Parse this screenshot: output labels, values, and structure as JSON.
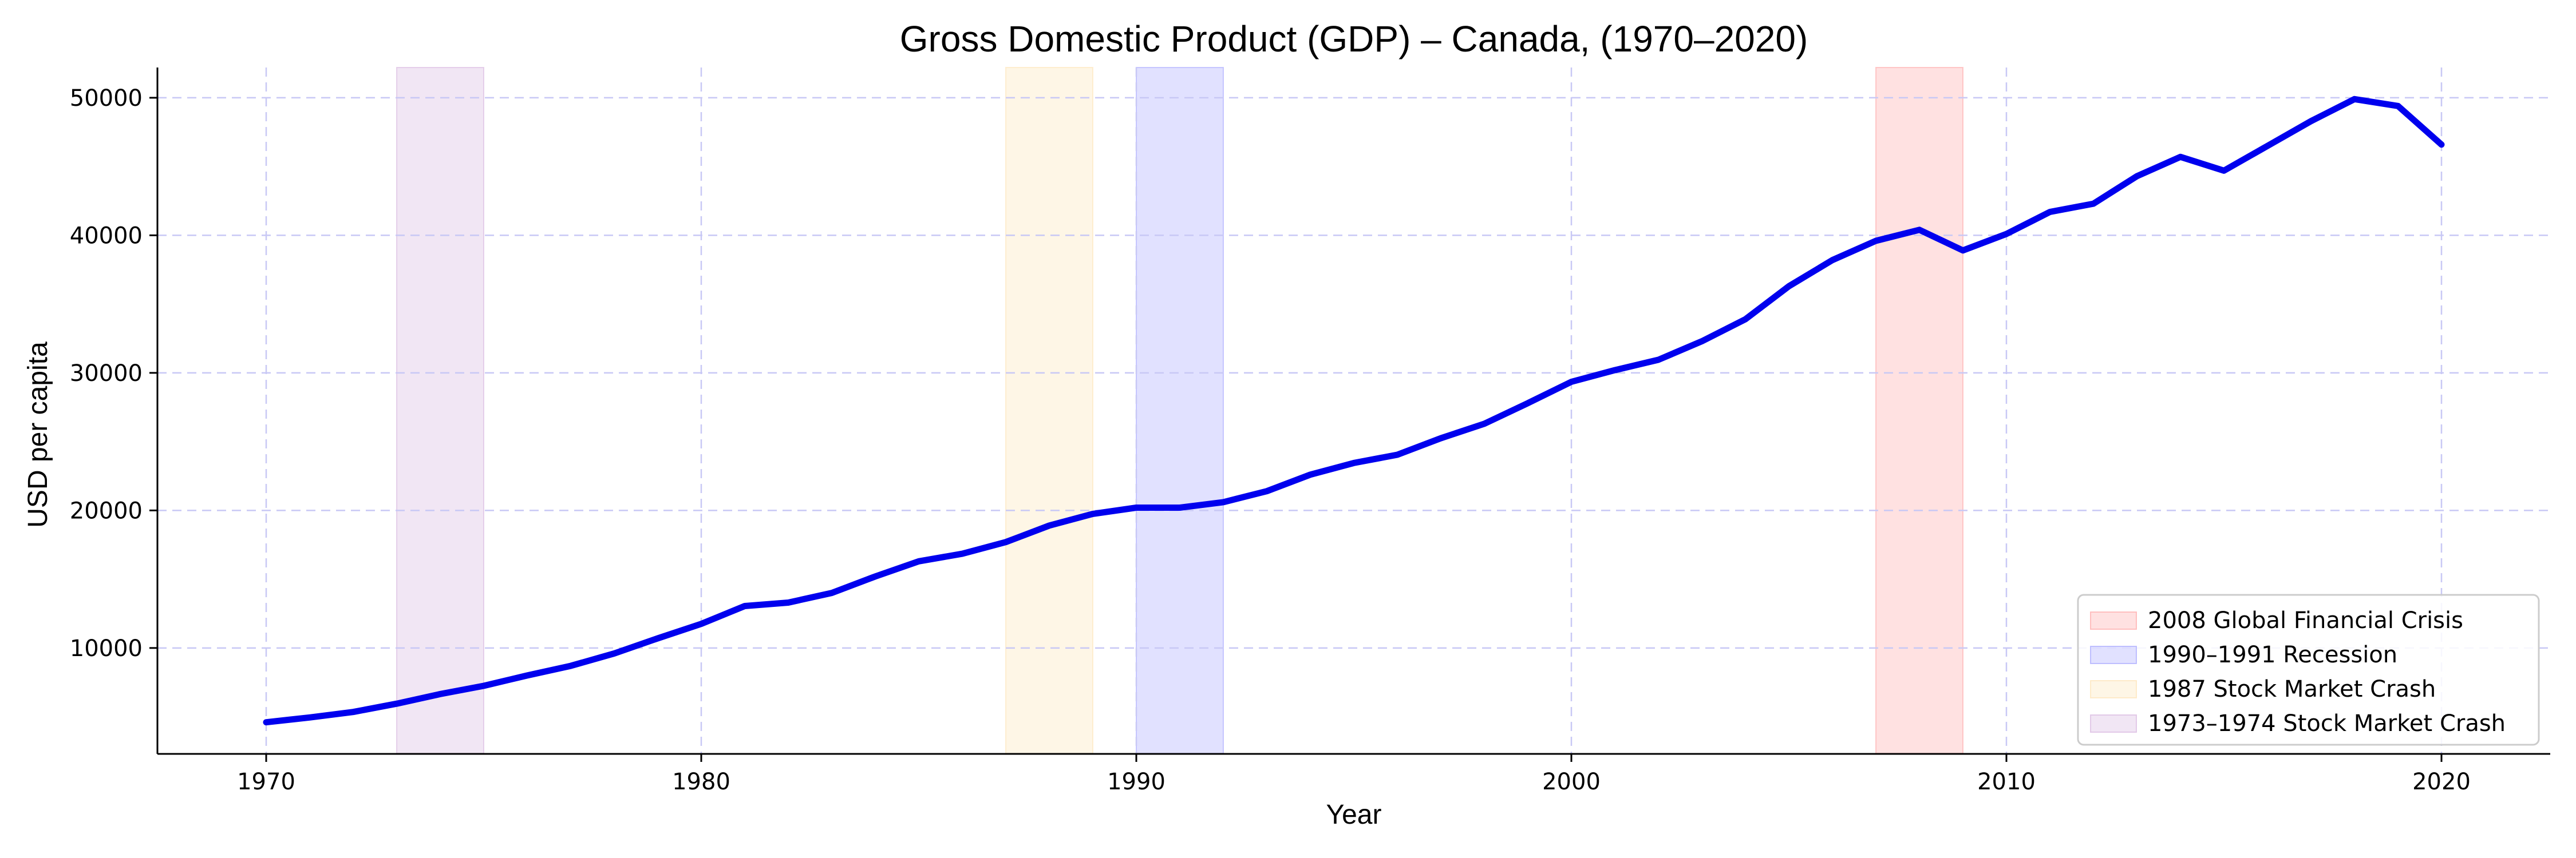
{
  "chart_data": {
    "type": "line",
    "title": "Gross Domestic Product (GDP) – Canada, (1970–2020)",
    "xlabel": "Year",
    "ylabel": "USD per capita",
    "xlim": [
      1967.5,
      2022.5
    ],
    "ylim": [
      2300,
      52200
    ],
    "xticks": [
      1970,
      1980,
      1990,
      2000,
      2010,
      2020
    ],
    "yticks": [
      10000,
      20000,
      30000,
      40000,
      50000
    ],
    "grid": true,
    "legend_position": "lower-right",
    "series": [
      {
        "color": "#0000ee",
        "x": [
          1970,
          1971,
          1972,
          1973,
          1974,
          1975,
          1976,
          1977,
          1978,
          1979,
          1980,
          1981,
          1982,
          1983,
          1984,
          1985,
          1986,
          1987,
          1988,
          1989,
          1990,
          1991,
          1992,
          1993,
          1994,
          1995,
          1996,
          1997,
          1998,
          1999,
          2000,
          2001,
          2002,
          2003,
          2004,
          2005,
          2006,
          2007,
          2008,
          2009,
          2010,
          2011,
          2012,
          2013,
          2014,
          2015,
          2016,
          2017,
          2018,
          2019,
          2020
        ],
        "y": [
          4600,
          4950,
          5350,
          5950,
          6650,
          7250,
          8000,
          8700,
          9600,
          10700,
          11750,
          13050,
          13300,
          14000,
          15200,
          16300,
          16850,
          17700,
          18900,
          19750,
          20200,
          20200,
          20600,
          21400,
          22600,
          23450,
          24050,
          25250,
          26300,
          27800,
          29350,
          30200,
          30950,
          32300,
          33900,
          36300,
          38200,
          39600,
          40400,
          38900,
          40100,
          41700,
          42300,
          44300,
          45700,
          44700,
          46500,
          48300,
          49900,
          49400,
          46600
        ]
      }
    ],
    "shaded_regions": [
      {
        "label": "2008 Global Financial Crisis",
        "x_start": 2007,
        "x_end": 2009,
        "color": "#ffaaaa"
      },
      {
        "label": "1990–1991 Recession",
        "x_start": 1990,
        "x_end": 1992,
        "color": "#aaaaff"
      },
      {
        "label": "1987 Stock Market Crash",
        "x_start": 1987,
        "x_end": 1989,
        "color": "#fde4b8"
      },
      {
        "label": "1973–1974 Stock Market Crash",
        "x_start": 1973,
        "x_end": 1975,
        "color": "#d8b8e0"
      }
    ]
  }
}
